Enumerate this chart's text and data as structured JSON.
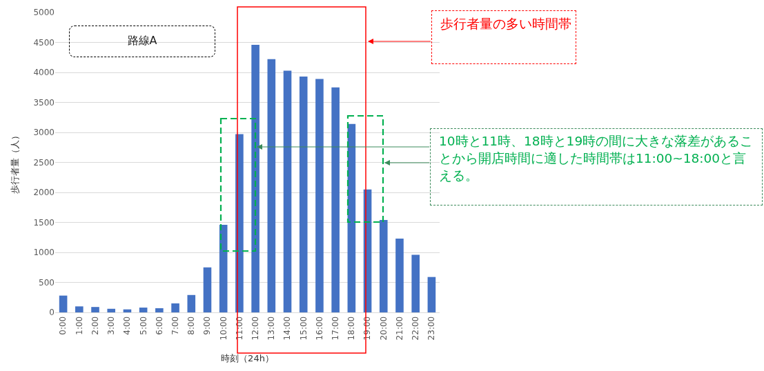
{
  "chart_data": {
    "type": "bar",
    "xlabel": "時刻（24h）",
    "ylabel": "歩行者量（人）",
    "categories": [
      "0:00",
      "1:00",
      "2:00",
      "3:00",
      "4:00",
      "5:00",
      "6:00",
      "7:00",
      "8:00",
      "9:00",
      "10:00",
      "11:00",
      "12:00",
      "13:00",
      "14:00",
      "15:00",
      "16:00",
      "17:00",
      "18:00",
      "19:00",
      "20:00",
      "21:00",
      "22:00",
      "23:00"
    ],
    "values": [
      280,
      100,
      90,
      60,
      50,
      80,
      70,
      150,
      290,
      750,
      1460,
      2970,
      4460,
      4220,
      4030,
      3930,
      3890,
      3750,
      3140,
      2050,
      1540,
      1230,
      960,
      590
    ],
    "color": "#4472c4",
    "ylim": [
      0,
      5000
    ],
    "yticks": [
      0,
      500,
      1000,
      1500,
      2000,
      2500,
      3000,
      3500,
      4000,
      4500,
      5000
    ],
    "grid": "y",
    "annotations": [
      "路線A",
      "歩行者量の多い時間帯",
      "10時と11時、18時と19時の間に大きな落差があることから開店時間に適した時間帯は11:00~18:00と言える。"
    ]
  }
}
